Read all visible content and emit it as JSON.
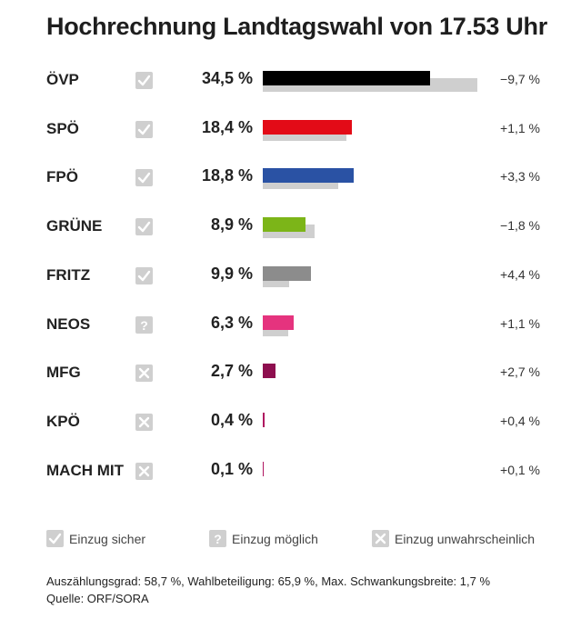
{
  "title": "Hochrechnung Landtagswahl von 17.53 Uhr",
  "chart_data": {
    "type": "bar",
    "orientation": "horizontal",
    "categories": [
      "ÖVP",
      "SPÖ",
      "FPÖ",
      "GRÜNE",
      "FRITZ",
      "NEOS",
      "MFG",
      "KPÖ",
      "MACH MIT"
    ],
    "series": [
      {
        "values": [
          34.5,
          18.4,
          18.8,
          8.9,
          9.9,
          6.3,
          2.7,
          0.4,
          0.1
        ]
      },
      {
        "values": [
          44.2,
          17.3,
          15.5,
          10.7,
          5.5,
          5.2,
          0,
          0,
          0
        ]
      }
    ],
    "value_labels": [
      "34,5 %",
      "18,4 %",
      "18,8 %",
      "8,9 %",
      "9,9 %",
      "6,3 %",
      "2,7 %",
      "0,4 %",
      "0,1 %"
    ],
    "change_labels": [
      "−9,7 %",
      "+1,1 %",
      "+3,3 %",
      "−1,8 %",
      "+4,4 %",
      "+1,1 %",
      "+2,7 %",
      "+0,4 %",
      "+0,1 %"
    ],
    "status": [
      "sicher",
      "sicher",
      "sicher",
      "sicher",
      "sicher",
      "möglich",
      "unwahrscheinlich",
      "unwahrscheinlich",
      "unwahrscheinlich"
    ],
    "colors": [
      "#000000",
      "#e30b17",
      "#2a52a4",
      "#7cb518",
      "#8c8c8c",
      "#e5337e",
      "#8e0f4f",
      "#b01660",
      "#b01660"
    ],
    "previous_color": "#cfcfcf",
    "xlim": [
      0,
      45
    ]
  },
  "legend": [
    {
      "key": "sicher",
      "label": "Einzug sicher",
      "icon": "check-icon"
    },
    {
      "key": "möglich",
      "label": "Einzug möglich",
      "icon": "question-icon"
    },
    {
      "key": "unwahrscheinlich",
      "label": "Einzug unwahrscheinlich",
      "icon": "cross-icon"
    }
  ],
  "footer": {
    "line1": "Auszählungsgrad: 58,7 %, Wahlbeteiligung: 65,9 %, Max. Schwankungsbreite: 1,7 %",
    "line2": "Quelle: ORF/SORA"
  }
}
